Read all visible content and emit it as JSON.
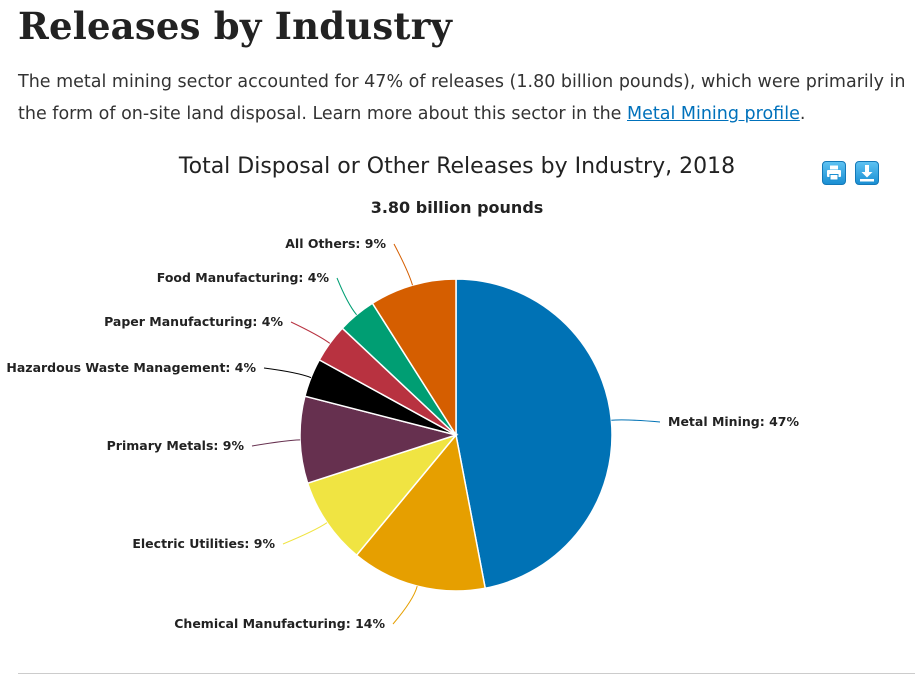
{
  "page": {
    "heading": "Releases by Industry",
    "intro_text": "The metal mining sector accounted for 47% of releases (1.80 billion pounds), which were primarily in the form of on-site land disposal. Learn more about this sector in the ",
    "intro_link": "Metal Mining profile",
    "intro_end": "."
  },
  "toolbar": {
    "print_icon": "printer-icon",
    "download_icon": "download-icon",
    "accent": "#1a8fd3"
  },
  "chart_data": {
    "type": "pie",
    "title": "Total Disposal or Other Releases by Industry, 2018",
    "subtitle": "3.80 billion pounds",
    "slices": [
      {
        "name": "Metal Mining",
        "value": 47,
        "color": "#0072b5",
        "label": "Metal Mining: 47%"
      },
      {
        "name": "Chemical Manufacturing",
        "value": 14,
        "color": "#e69f00",
        "label": "Chemical Manufacturing: 14%"
      },
      {
        "name": "Electric Utilities",
        "value": 9,
        "color": "#f0e442",
        "label": "Electric Utilities: 9%"
      },
      {
        "name": "Primary Metals",
        "value": 9,
        "color": "#66304f",
        "label": "Primary Metals: 9%"
      },
      {
        "name": "Hazardous Waste Management",
        "value": 4,
        "color": "#000000",
        "label": "Hazardous Waste Management: 4%"
      },
      {
        "name": "Paper Manufacturing",
        "value": 4,
        "color": "#b83240",
        "label": "Paper Manufacturing: 4%"
      },
      {
        "name": "Food Manufacturing",
        "value": 4,
        "color": "#009e73",
        "label": "Food Manufacturing: 4%"
      },
      {
        "name": "All Others",
        "value": 9,
        "color": "#d55e00",
        "label": "All Others: 9%"
      }
    ]
  }
}
